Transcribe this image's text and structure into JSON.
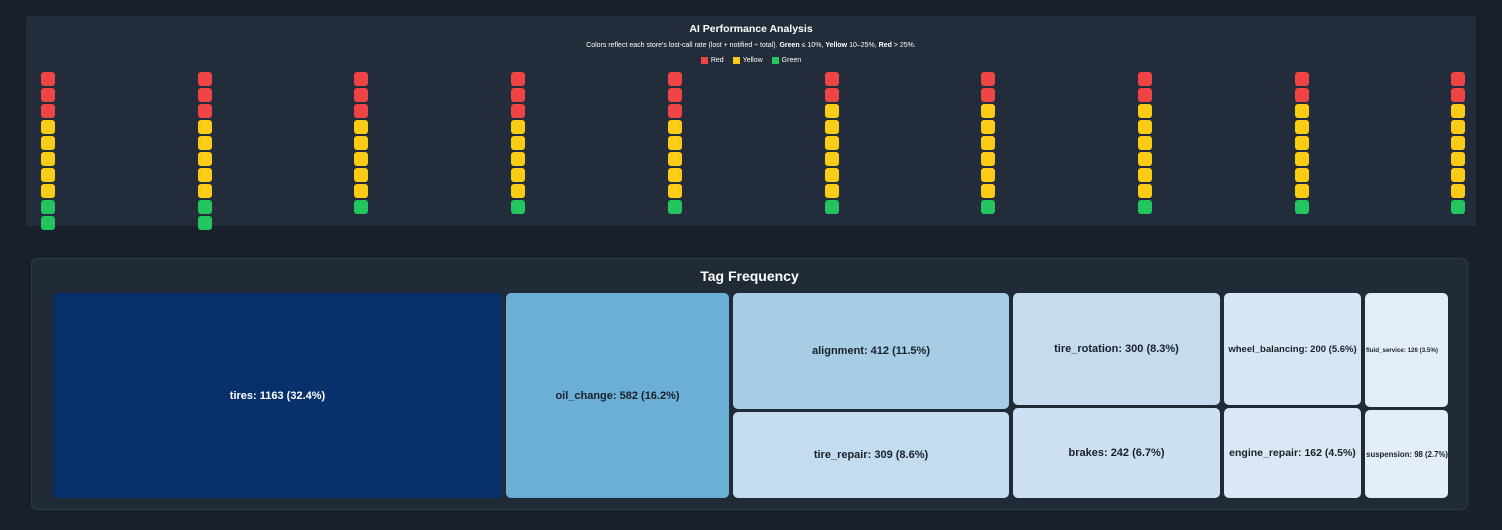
{
  "performance": {
    "title": "AI Performance Analysis",
    "subtitle_prefix": "Colors reflect each store's lost-call rate (lost + notified ÷ total). ",
    "green_word": "Green",
    "green_rule": " ≤ 10%, ",
    "yellow_word": "Yellow",
    "yellow_rule": " 10–25%, ",
    "red_word": "Red",
    "red_rule": " > 25%.",
    "legend": [
      {
        "label": "Red",
        "color": "#ef4444"
      },
      {
        "label": "Yellow",
        "color": "#facc15"
      },
      {
        "label": "Green",
        "color": "#22c55e"
      }
    ],
    "colors": {
      "red": "#ef4444",
      "yellow": "#facc15",
      "green": "#22c55e"
    },
    "columns": [
      {
        "red": 3,
        "yellow": 5,
        "green": 2
      },
      {
        "red": 3,
        "yellow": 5,
        "green": 2
      },
      {
        "red": 3,
        "yellow": 5,
        "green": 1
      },
      {
        "red": 3,
        "yellow": 5,
        "green": 1
      },
      {
        "red": 3,
        "yellow": 5,
        "green": 1
      },
      {
        "red": 2,
        "yellow": 6,
        "green": 1
      },
      {
        "red": 2,
        "yellow": 6,
        "green": 1
      },
      {
        "red": 2,
        "yellow": 6,
        "green": 1
      },
      {
        "red": 2,
        "yellow": 6,
        "green": 1
      },
      {
        "red": 2,
        "yellow": 6,
        "green": 1
      }
    ]
  },
  "tag_frequency": {
    "title": "Tag Frequency",
    "cells": [
      {
        "name": "tires",
        "label": "tires: 1163 (32.4%)",
        "value": 1163,
        "bg": "#08306b",
        "fg": "#ffffff"
      },
      {
        "name": "oil_change",
        "label": "oil_change: 582 (16.2%)",
        "value": 582,
        "bg": "#6baed6",
        "fg": "#1a202a"
      },
      {
        "name": "alignment",
        "label": "alignment: 412 (11.5%)",
        "value": 412,
        "bg": "#a6cde4",
        "fg": "#1a202a"
      },
      {
        "name": "tire_repair",
        "label": "tire_repair: 309 (8.6%)",
        "value": 309,
        "bg": "#c4dcef",
        "fg": "#1a202a"
      },
      {
        "name": "tire_rotation",
        "label": "tire_rotation: 300 (8.3%)",
        "value": 300,
        "bg": "#c5dcef",
        "fg": "#1a202a"
      },
      {
        "name": "brakes",
        "label": "brakes: 242 (6.7%)",
        "value": 242,
        "bg": "#cde1f2",
        "fg": "#1a202a"
      },
      {
        "name": "wheel_balancing",
        "label": "wheel_balancing: 200 (5.6%)",
        "value": 200,
        "bg": "#d7e6f4",
        "fg": "#1a202a"
      },
      {
        "name": "engine_repair",
        "label": "engine_repair: 162 (4.5%)",
        "value": 162,
        "bg": "#dae8f5",
        "fg": "#1a202a"
      },
      {
        "name": "fluid_service",
        "label": "fluid_service: 126 (3.5%)",
        "value": 126,
        "bg": "#e2edf8",
        "fg": "#1a202a"
      },
      {
        "name": "suspension",
        "label": "suspension: 98 (2.7%)",
        "value": 98,
        "bg": "#e4eef8",
        "fg": "#1a202a"
      }
    ]
  }
}
